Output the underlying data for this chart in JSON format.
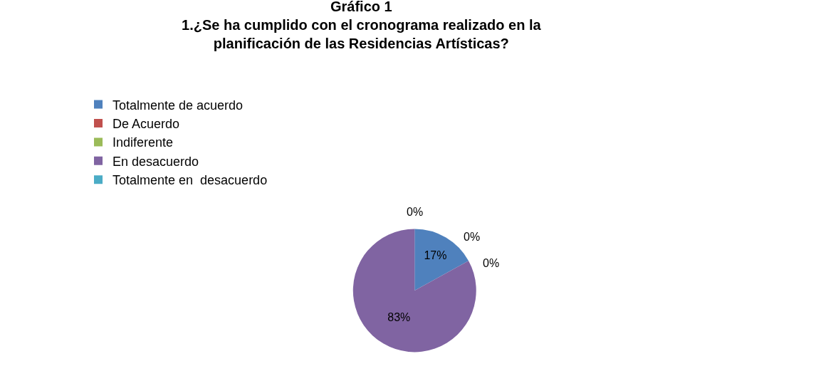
{
  "chart_data": {
    "type": "pie",
    "title": "Gráfico 1\n1.¿Se ha cumplido con el cronograma realizado en la\nplanificación de las Residencias Artísticas?",
    "categories": [
      "Totalmente de acuerdo",
      "De Acuerdo",
      "Indiferente",
      "En desacuerdo",
      "Totalmente en  desacuerdo"
    ],
    "values": [
      17,
      0,
      0,
      83,
      0
    ],
    "colors": [
      "#4f81bd",
      "#c0504d",
      "#9bbb59",
      "#8064a2",
      "#4bacc6"
    ],
    "value_labels": [
      "17%",
      "0%",
      "0%",
      "83%",
      "0%"
    ],
    "legend": "top"
  }
}
